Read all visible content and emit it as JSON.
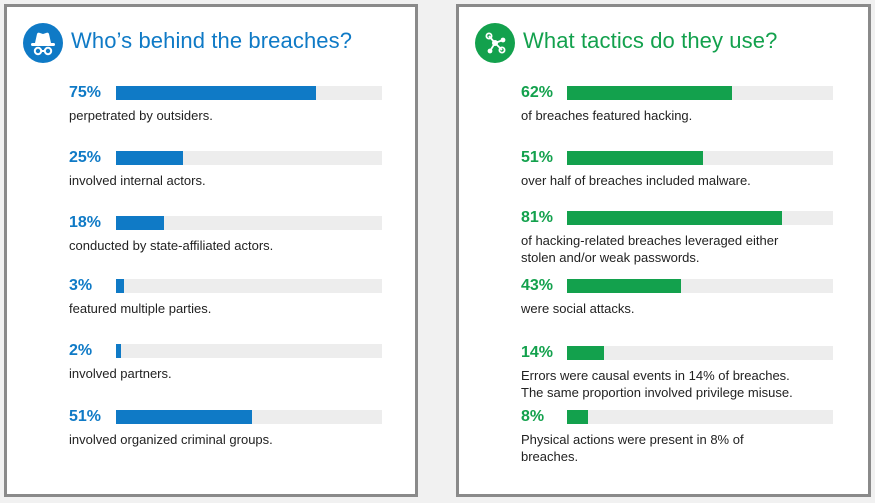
{
  "colors": {
    "left_accent": "#0f7ac6",
    "right_accent": "#13a14d",
    "track": "#ededed",
    "panel_border": "#8a8a8a"
  },
  "left_panel": {
    "title": "Who’s behind the breaches?",
    "icon": "spy-icon"
  },
  "right_panel": {
    "title": "What tactics do they use?",
    "icon": "network-nodes-icon"
  },
  "chart_data": [
    {
      "type": "bar",
      "title": "Who’s behind the breaches?",
      "xlim": [
        0,
        100
      ],
      "categories": [
        "75%",
        "25%",
        "18%",
        "3%",
        "2%",
        "51%"
      ],
      "values": [
        75,
        25,
        18,
        3,
        2,
        51
      ],
      "descriptions": [
        [
          "perpetrated by outsiders."
        ],
        [
          "involved internal actors."
        ],
        [
          "conducted by state-affiliated actors."
        ],
        [
          "featured multiple parties."
        ],
        [
          "involved partners."
        ],
        [
          "involved organized criminal groups."
        ]
      ]
    },
    {
      "type": "bar",
      "title": "What tactics do they use?",
      "xlim": [
        0,
        100
      ],
      "categories": [
        "62%",
        "51%",
        "81%",
        "43%",
        "14%",
        "8%"
      ],
      "values": [
        62,
        51,
        81,
        43,
        14,
        8
      ],
      "descriptions": [
        [
          "of breaches featured hacking."
        ],
        [
          "over half of breaches included malware."
        ],
        [
          "of hacking-related breaches leveraged either",
          "stolen and/or weak passwords."
        ],
        [
          "were social attacks."
        ],
        [
          "Errors were causal events in 14% of breaches.",
          "The same proportion involved privilege misuse."
        ],
        [
          "Physical actions were present in 8% of",
          "breaches."
        ]
      ]
    }
  ]
}
